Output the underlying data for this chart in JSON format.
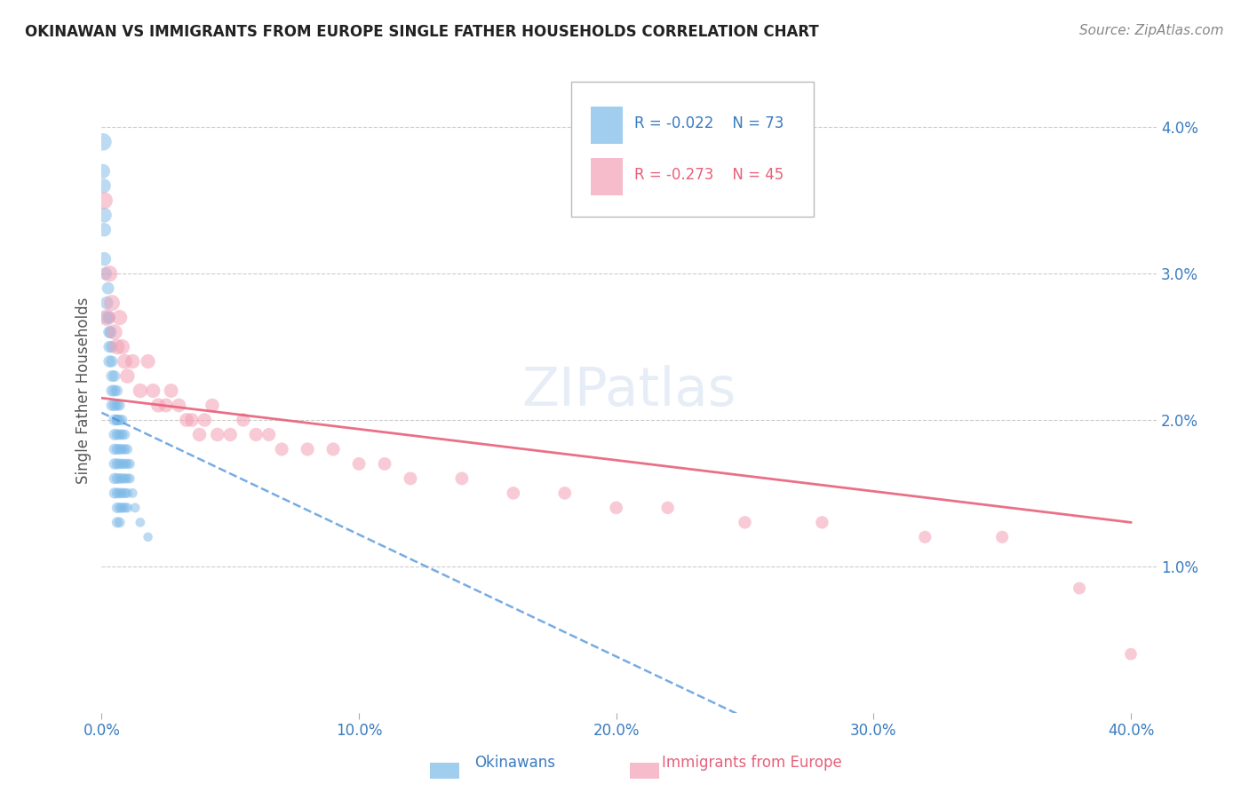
{
  "title": "OKINAWAN VS IMMIGRANTS FROM EUROPE SINGLE FATHER HOUSEHOLDS CORRELATION CHART",
  "source": "Source: ZipAtlas.com",
  "ylabel": "Single Father Households",
  "background_color": "#ffffff",
  "watermark_text": "ZIPatlas",
  "legend_blue_r": "R = -0.022",
  "legend_blue_n": "N = 73",
  "legend_pink_r": "R = -0.273",
  "legend_pink_n": "N = 45",
  "blue_color": "#7ab8e8",
  "pink_color": "#f4a0b5",
  "blue_line_color": "#4a90d9",
  "pink_line_color": "#e8607a",
  "xlim": [
    0.0,
    0.41
  ],
  "ylim": [
    0.0,
    0.044
  ],
  "okinawan_x": [
    0.0005,
    0.001,
    0.0005,
    0.0008,
    0.001,
    0.001,
    0.0015,
    0.002,
    0.002,
    0.0025,
    0.003,
    0.003,
    0.003,
    0.003,
    0.0035,
    0.004,
    0.004,
    0.004,
    0.004,
    0.004,
    0.005,
    0.005,
    0.005,
    0.005,
    0.005,
    0.005,
    0.005,
    0.005,
    0.005,
    0.006,
    0.006,
    0.006,
    0.006,
    0.006,
    0.006,
    0.006,
    0.006,
    0.006,
    0.006,
    0.006,
    0.007,
    0.007,
    0.007,
    0.007,
    0.007,
    0.007,
    0.007,
    0.007,
    0.007,
    0.008,
    0.008,
    0.008,
    0.008,
    0.008,
    0.008,
    0.008,
    0.009,
    0.009,
    0.009,
    0.009,
    0.009,
    0.009,
    0.01,
    0.01,
    0.01,
    0.01,
    0.01,
    0.011,
    0.011,
    0.012,
    0.013,
    0.015,
    0.018
  ],
  "okinawan_y": [
    0.039,
    0.034,
    0.037,
    0.036,
    0.033,
    0.031,
    0.03,
    0.028,
    0.027,
    0.029,
    0.027,
    0.026,
    0.025,
    0.024,
    0.026,
    0.025,
    0.024,
    0.023,
    0.022,
    0.021,
    0.023,
    0.022,
    0.021,
    0.02,
    0.019,
    0.018,
    0.017,
    0.016,
    0.015,
    0.022,
    0.021,
    0.02,
    0.02,
    0.019,
    0.018,
    0.017,
    0.016,
    0.015,
    0.014,
    0.013,
    0.021,
    0.02,
    0.019,
    0.018,
    0.017,
    0.016,
    0.015,
    0.014,
    0.013,
    0.02,
    0.019,
    0.018,
    0.017,
    0.016,
    0.015,
    0.014,
    0.019,
    0.018,
    0.017,
    0.016,
    0.015,
    0.014,
    0.018,
    0.017,
    0.016,
    0.015,
    0.014,
    0.017,
    0.016,
    0.015,
    0.014,
    0.013,
    0.012
  ],
  "okinawan_sizes": [
    80,
    60,
    55,
    55,
    50,
    50,
    45,
    45,
    45,
    40,
    40,
    40,
    38,
    38,
    38,
    38,
    36,
    36,
    36,
    35,
    35,
    35,
    34,
    34,
    34,
    33,
    33,
    33,
    32,
    32,
    32,
    32,
    31,
    31,
    31,
    31,
    30,
    30,
    30,
    30,
    30,
    30,
    30,
    30,
    29,
    29,
    29,
    29,
    29,
    29,
    29,
    28,
    28,
    28,
    28,
    28,
    28,
    28,
    27,
    27,
    27,
    27,
    27,
    27,
    26,
    26,
    26,
    26,
    25,
    25,
    25,
    24,
    23
  ],
  "europe_x": [
    0.001,
    0.002,
    0.003,
    0.004,
    0.005,
    0.006,
    0.007,
    0.008,
    0.009,
    0.01,
    0.012,
    0.015,
    0.018,
    0.02,
    0.022,
    0.025,
    0.027,
    0.03,
    0.033,
    0.035,
    0.038,
    0.04,
    0.043,
    0.045,
    0.05,
    0.055,
    0.06,
    0.065,
    0.07,
    0.08,
    0.09,
    0.1,
    0.11,
    0.12,
    0.14,
    0.16,
    0.18,
    0.2,
    0.22,
    0.25,
    0.28,
    0.32,
    0.35,
    0.38,
    0.4
  ],
  "europe_y": [
    0.035,
    0.027,
    0.03,
    0.028,
    0.026,
    0.025,
    0.027,
    0.025,
    0.024,
    0.023,
    0.024,
    0.022,
    0.024,
    0.022,
    0.021,
    0.021,
    0.022,
    0.021,
    0.02,
    0.02,
    0.019,
    0.02,
    0.021,
    0.019,
    0.019,
    0.02,
    0.019,
    0.019,
    0.018,
    0.018,
    0.018,
    0.017,
    0.017,
    0.016,
    0.016,
    0.015,
    0.015,
    0.014,
    0.014,
    0.013,
    0.013,
    0.012,
    0.012,
    0.0085,
    0.004
  ],
  "europe_sizes": [
    55,
    52,
    50,
    48,
    46,
    44,
    44,
    43,
    42,
    41,
    40,
    40,
    39,
    39,
    39,
    38,
    38,
    37,
    37,
    37,
    36,
    36,
    36,
    36,
    35,
    35,
    35,
    34,
    34,
    34,
    34,
    33,
    33,
    33,
    33,
    32,
    32,
    32,
    31,
    31,
    31,
    30,
    30,
    29,
    28
  ],
  "blue_line_x_start": 0.0,
  "blue_line_x_end": 0.018,
  "blue_line_y_start": 0.0205,
  "blue_line_y_end": 0.019,
  "pink_line_x_start": 0.0,
  "pink_line_x_end": 0.4,
  "pink_line_y_start": 0.0215,
  "pink_line_y_end": 0.013
}
